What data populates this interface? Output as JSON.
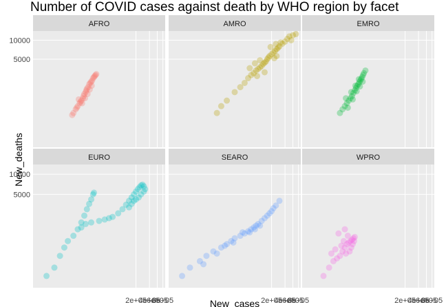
{
  "chart_data": {
    "type": "scatter",
    "title": "Number of COVID cases against death by WHO region by facet",
    "xlabel": "New_cases",
    "ylabel": "New_deaths",
    "x_scale": "log",
    "y_scale": "log",
    "x_ticks": [
      "2e+05",
      "4e+05",
      "6e+05",
      "8e+05"
    ],
    "y_ticks": [
      "5000",
      "10000"
    ],
    "grid": true,
    "layout": "facet 3x2",
    "point_opacity": 0.3,
    "facets": [
      {
        "label": "AFRO",
        "color": "#f8766d",
        "points": [
          [
            8000,
            700
          ],
          [
            9000,
            800
          ],
          [
            10000,
            900
          ],
          [
            11000,
            1000
          ],
          [
            12000,
            1100
          ],
          [
            13000,
            1200
          ],
          [
            14000,
            1400
          ],
          [
            15000,
            1500
          ],
          [
            16000,
            1700
          ],
          [
            18000,
            2000
          ],
          [
            20000,
            2200
          ],
          [
            22000,
            2500
          ],
          [
            24000,
            2700
          ],
          [
            7500,
            650
          ],
          [
            9500,
            850
          ],
          [
            11500,
            1050
          ],
          [
            13500,
            1300
          ],
          [
            15500,
            1600
          ],
          [
            17000,
            1800
          ],
          [
            19000,
            2100
          ],
          [
            21000,
            2300
          ],
          [
            23000,
            2600
          ],
          [
            25000,
            2800
          ],
          [
            12500,
            1000
          ],
          [
            14500,
            1200
          ],
          [
            16500,
            1400
          ],
          [
            10500,
            1150
          ],
          [
            18500,
            1650
          ],
          [
            20500,
            1900
          ],
          [
            26000,
            2900
          ]
        ]
      },
      {
        "label": "AMRO",
        "color": "#b79f00",
        "points": [
          [
            12000,
            700
          ],
          [
            15000,
            900
          ],
          [
            20000,
            1100
          ],
          [
            30000,
            1500
          ],
          [
            40000,
            1800
          ],
          [
            50000,
            2100
          ],
          [
            60000,
            2500
          ],
          [
            70000,
            2800
          ],
          [
            80000,
            3000
          ],
          [
            90000,
            3300
          ],
          [
            100000,
            3500
          ],
          [
            110000,
            3700
          ],
          [
            120000,
            3900
          ],
          [
            130000,
            4200
          ],
          [
            140000,
            4400
          ],
          [
            150000,
            4600
          ],
          [
            160000,
            5000
          ],
          [
            170000,
            5300
          ],
          [
            180000,
            5600
          ],
          [
            200000,
            6000
          ],
          [
            220000,
            6400
          ],
          [
            240000,
            6800
          ],
          [
            260000,
            7200
          ],
          [
            280000,
            7600
          ],
          [
            300000,
            8000
          ],
          [
            350000,
            8800
          ],
          [
            400000,
            9500
          ],
          [
            450000,
            10500
          ],
          [
            500000,
            11500
          ],
          [
            600000,
            12000
          ],
          [
            700000,
            12500
          ],
          [
            550000,
            10000
          ],
          [
            320000,
            9200
          ],
          [
            250000,
            8700
          ],
          [
            190000,
            7800
          ],
          [
            230000,
            5200
          ],
          [
            85000,
            4300
          ],
          [
            95000,
            2700
          ],
          [
            65000,
            3600
          ],
          [
            110000,
            4800
          ],
          [
            140000,
            3100
          ],
          [
            260000,
            5600
          ]
        ]
      },
      {
        "label": "EMRO",
        "color": "#00ba38",
        "points": [
          [
            7000,
            700
          ],
          [
            8000,
            800
          ],
          [
            9000,
            900
          ],
          [
            10000,
            1000
          ],
          [
            11000,
            1100
          ],
          [
            12000,
            1200
          ],
          [
            13000,
            1300
          ],
          [
            14000,
            1450
          ],
          [
            15000,
            1600
          ],
          [
            16000,
            1750
          ],
          [
            17000,
            1900
          ],
          [
            18000,
            2000
          ],
          [
            19000,
            2150
          ],
          [
            20000,
            2300
          ],
          [
            21000,
            2450
          ],
          [
            22000,
            2600
          ],
          [
            23000,
            2800
          ],
          [
            24000,
            3000
          ],
          [
            26000,
            3300
          ],
          [
            9500,
            1200
          ],
          [
            12500,
            1500
          ],
          [
            15500,
            1900
          ],
          [
            18500,
            2400
          ],
          [
            10500,
            850
          ],
          [
            13500,
            1150
          ],
          [
            16500,
            1550
          ],
          [
            19500,
            1850
          ],
          [
            22500,
            2200
          ]
        ]
      },
      {
        "label": "EURO",
        "color": "#00bfc4",
        "points": [
          [
            2000,
            300
          ],
          [
            3000,
            400
          ],
          [
            4000,
            600
          ],
          [
            5000,
            800
          ],
          [
            6000,
            1000
          ],
          [
            8000,
            1200
          ],
          [
            10000,
            1500
          ],
          [
            12000,
            1900
          ],
          [
            14000,
            2400
          ],
          [
            16000,
            3000
          ],
          [
            18000,
            3600
          ],
          [
            20000,
            4200
          ],
          [
            22000,
            5000
          ],
          [
            23000,
            5300
          ],
          [
            12000,
            1600
          ],
          [
            15000,
            1800
          ],
          [
            20000,
            1900
          ],
          [
            30000,
            2000
          ],
          [
            40000,
            2100
          ],
          [
            50000,
            2200
          ],
          [
            60000,
            2300
          ],
          [
            80000,
            2600
          ],
          [
            100000,
            3000
          ],
          [
            120000,
            3500
          ],
          [
            140000,
            4000
          ],
          [
            160000,
            4500
          ],
          [
            180000,
            5000
          ],
          [
            200000,
            5500
          ],
          [
            220000,
            6000
          ],
          [
            240000,
            6400
          ],
          [
            260000,
            6800
          ],
          [
            280000,
            7000
          ],
          [
            300000,
            6600
          ],
          [
            320000,
            6000
          ],
          [
            300000,
            5500
          ],
          [
            260000,
            5000
          ],
          [
            230000,
            4500
          ],
          [
            200000,
            4200
          ],
          [
            180000,
            4000
          ],
          [
            160000,
            3600
          ],
          [
            140000,
            3200
          ]
        ]
      },
      {
        "label": "SEARO",
        "color": "#619cff",
        "points": [
          [
            2000,
            300
          ],
          [
            3000,
            400
          ],
          [
            5000,
            500
          ],
          [
            7000,
            600
          ],
          [
            10000,
            700
          ],
          [
            15000,
            800
          ],
          [
            20000,
            900
          ],
          [
            25000,
            1000
          ],
          [
            30000,
            1100
          ],
          [
            40000,
            1200
          ],
          [
            50000,
            1300
          ],
          [
            60000,
            1400
          ],
          [
            70000,
            1500
          ],
          [
            80000,
            1600
          ],
          [
            90000,
            1700
          ],
          [
            100000,
            1800
          ],
          [
            120000,
            2000
          ],
          [
            140000,
            2200
          ],
          [
            160000,
            2400
          ],
          [
            180000,
            2600
          ],
          [
            200000,
            2800
          ],
          [
            220000,
            3100
          ],
          [
            250000,
            3400
          ],
          [
            300000,
            4000
          ],
          [
            6000,
            450
          ],
          [
            12000,
            650
          ],
          [
            18000,
            850
          ],
          [
            28000,
            950
          ],
          [
            45000,
            1350
          ],
          [
            65000,
            1350
          ],
          [
            85000,
            1500
          ],
          [
            110000,
            1700
          ]
        ]
      },
      {
        "label": "WPRO",
        "color": "#f564e3",
        "points": [
          [
            3000,
            300
          ],
          [
            4000,
            400
          ],
          [
            5000,
            500
          ],
          [
            6000,
            550
          ],
          [
            7000,
            600
          ],
          [
            8000,
            700
          ],
          [
            9000,
            800
          ],
          [
            10000,
            900
          ],
          [
            11000,
            950
          ],
          [
            12000,
            1000
          ],
          [
            13000,
            1050
          ],
          [
            14000,
            1100
          ],
          [
            15000,
            1150
          ],
          [
            6500,
            1300
          ],
          [
            8500,
            1000
          ],
          [
            9500,
            650
          ],
          [
            11500,
            700
          ],
          [
            7500,
            850
          ],
          [
            10500,
            1200
          ],
          [
            12500,
            800
          ],
          [
            5500,
            750
          ],
          [
            4500,
            650
          ],
          [
            13500,
            900
          ],
          [
            14500,
            1000
          ],
          [
            9000,
            1500
          ]
        ]
      }
    ]
  }
}
